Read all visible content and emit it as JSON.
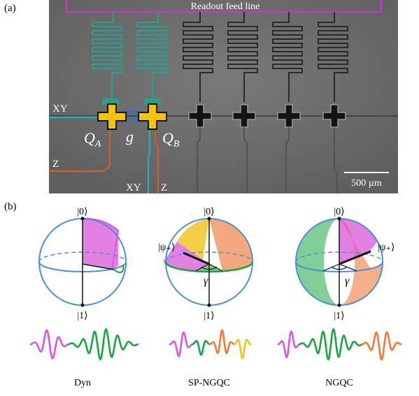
{
  "panel_a": {
    "label": "(a)",
    "feed_line_label": "Readout feed line",
    "port_xy_left": "XY",
    "port_z_left": "Z",
    "port_xy_bottom": "XY",
    "port_z_bottom": "Z",
    "qubit_a": "Q",
    "qubit_a_sub": "A",
    "coupler": "g",
    "qubit_b": "Q",
    "qubit_b_sub": "B",
    "scale_bar": "500 µm",
    "colors": {
      "chip_bg": "#6f6f6f",
      "qubit_yellow": "#f5c400",
      "feed_line": "#c23ac2",
      "resonator": "#1fa58c",
      "xy_line": "#1fb5b5",
      "z_line": "#d0602a",
      "coupler": "#2a6fd6"
    }
  },
  "panel_b": {
    "label": "(b)",
    "spheres": [
      {
        "name": "Dyn",
        "top": "|0⟩",
        "bottom": "|1⟩",
        "state": "",
        "angle": ""
      },
      {
        "name": "SP-NGQC",
        "top": "|0⟩",
        "bottom": "|1⟩",
        "state": "|ψ₊⟩",
        "angle": "γ"
      },
      {
        "name": "NGQC",
        "top": "|0⟩",
        "bottom": "|1⟩",
        "state": "|ψ₊⟩",
        "angle": "γ"
      }
    ],
    "colors": {
      "sphere": "#4a90d9",
      "magenta": "#d957d9",
      "green": "#19a53f",
      "orange": "#f07a3a",
      "yellow": "#f2c21a"
    }
  }
}
